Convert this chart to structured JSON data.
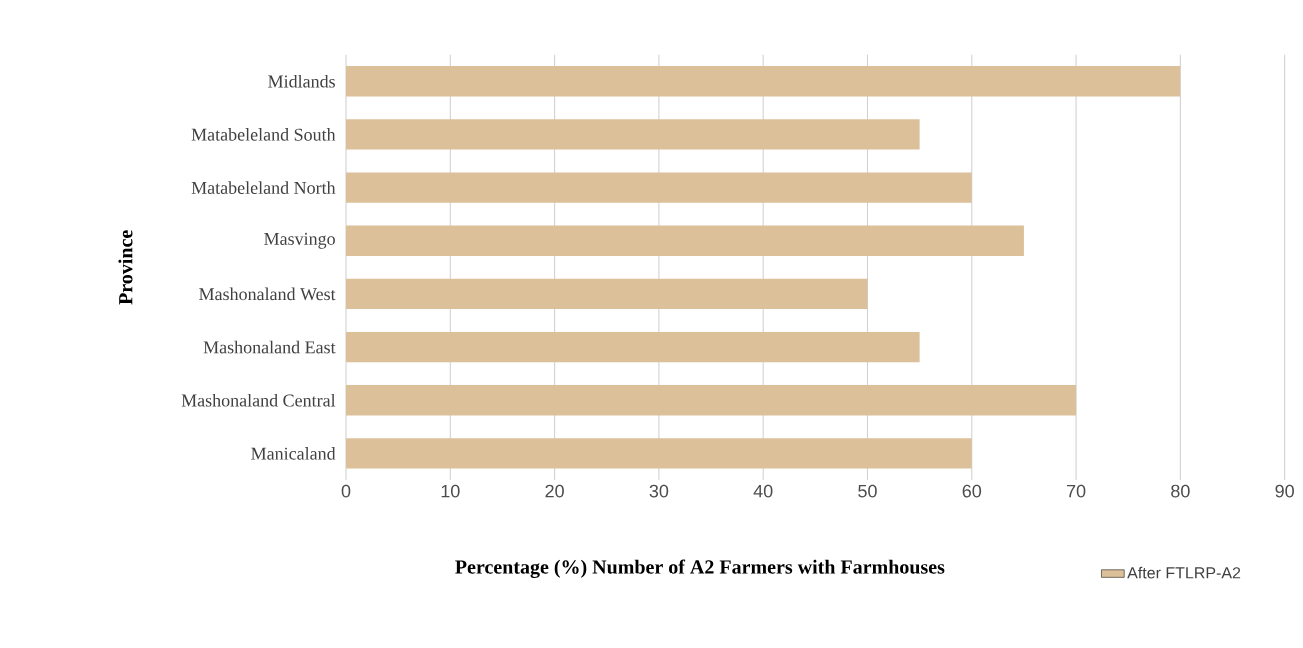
{
  "chart_data": {
    "type": "bar",
    "orientation": "horizontal",
    "categories": [
      "Midlands",
      "Matabeleland South",
      "Matabeleland North",
      "Masvingo",
      "Mashonaland West",
      "Mashonaland East",
      "Mashonaland Central",
      "Manicaland"
    ],
    "series": [
      {
        "name": "After FTLRP-A2",
        "color": "#dcc09a",
        "values": [
          80,
          55,
          60,
          65,
          50,
          55,
          70,
          60
        ]
      }
    ],
    "xlim": [
      0,
      90
    ],
    "xticks": [
      0,
      10,
      20,
      30,
      40,
      50,
      60,
      70,
      80,
      90
    ],
    "xlabel": "Percentage (%) Number of A2 Farmers with Farmhouses",
    "ylabel": "Province",
    "grid": "x",
    "legend": "bottom right"
  }
}
